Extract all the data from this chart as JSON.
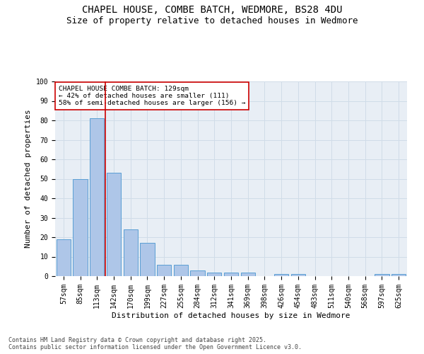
{
  "title_line1": "CHAPEL HOUSE, COMBE BATCH, WEDMORE, BS28 4DU",
  "title_line2": "Size of property relative to detached houses in Wedmore",
  "xlabel": "Distribution of detached houses by size in Wedmore",
  "ylabel": "Number of detached properties",
  "categories": [
    "57sqm",
    "85sqm",
    "113sqm",
    "142sqm",
    "170sqm",
    "199sqm",
    "227sqm",
    "255sqm",
    "284sqm",
    "312sqm",
    "341sqm",
    "369sqm",
    "398sqm",
    "426sqm",
    "454sqm",
    "483sqm",
    "511sqm",
    "540sqm",
    "568sqm",
    "597sqm",
    "625sqm"
  ],
  "values": [
    19,
    50,
    81,
    53,
    24,
    17,
    6,
    6,
    3,
    2,
    2,
    2,
    0,
    1,
    1,
    0,
    0,
    0,
    0,
    1,
    1
  ],
  "bar_color": "#aec6e8",
  "bar_edge_color": "#5a9fd4",
  "vline_color": "#cc0000",
  "annotation_text": "CHAPEL HOUSE COMBE BATCH: 129sqm\n← 42% of detached houses are smaller (111)\n58% of semi-detached houses are larger (156) →",
  "annotation_box_color": "#ffffff",
  "annotation_box_edge_color": "#cc0000",
  "ylim": [
    0,
    100
  ],
  "yticks": [
    0,
    10,
    20,
    30,
    40,
    50,
    60,
    70,
    80,
    90,
    100
  ],
  "grid_color": "#d0dce8",
  "background_color": "#e8eef5",
  "footnote": "Contains HM Land Registry data © Crown copyright and database right 2025.\nContains public sector information licensed under the Open Government Licence v3.0.",
  "title_fontsize": 10,
  "subtitle_fontsize": 9,
  "axis_label_fontsize": 8,
  "tick_fontsize": 7,
  "annotation_fontsize": 6.8,
  "footnote_fontsize": 6
}
